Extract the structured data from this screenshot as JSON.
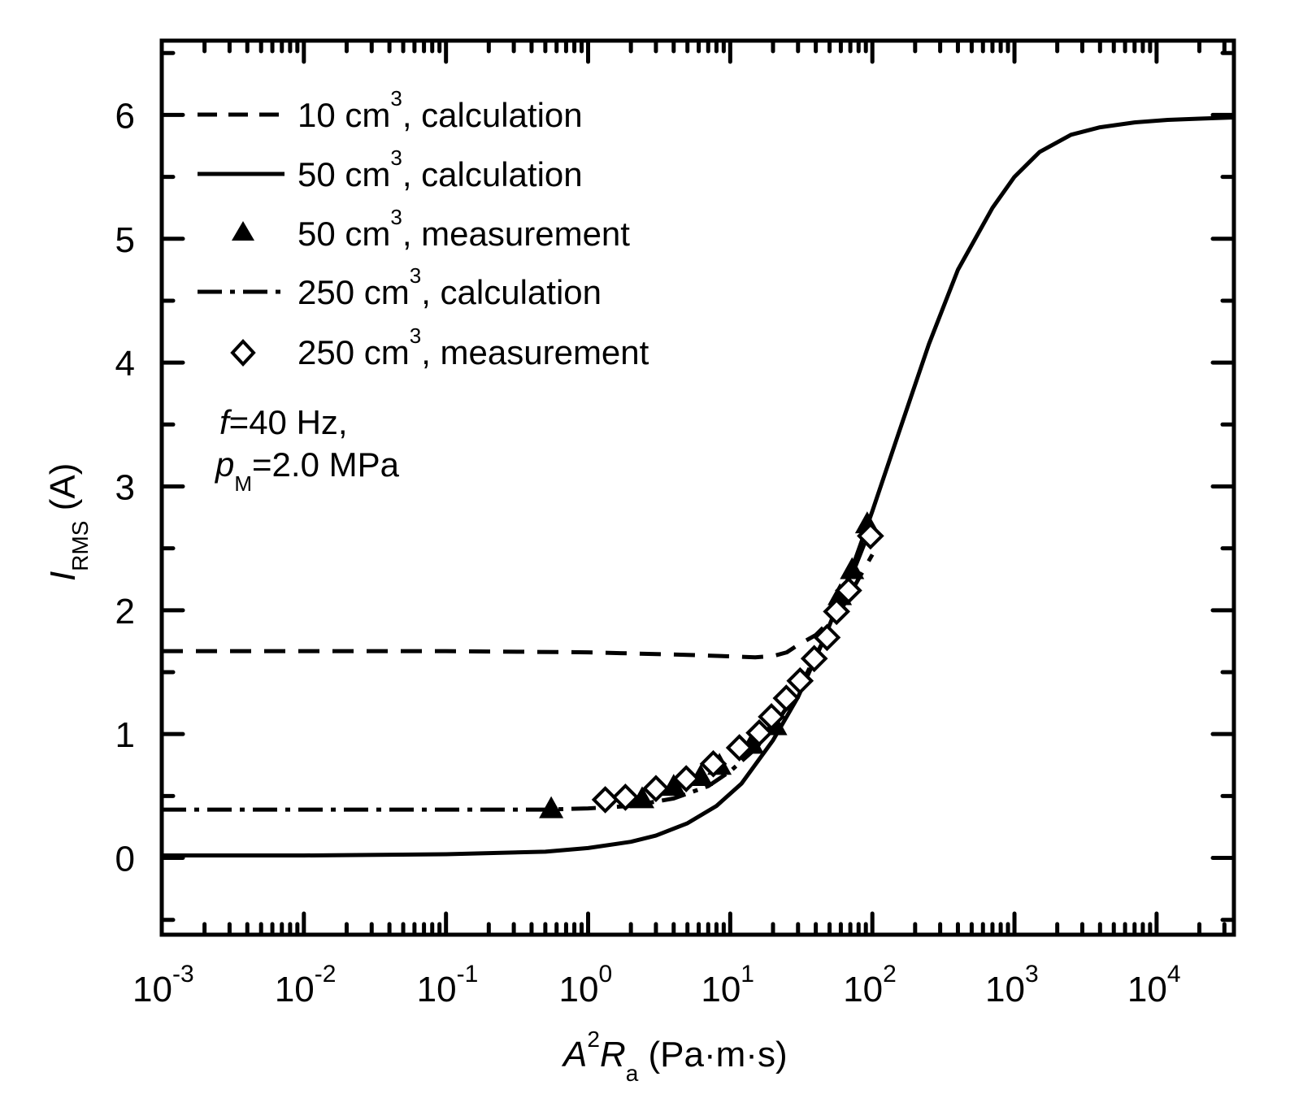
{
  "chart_data": {
    "type": "line",
    "xscale": "log",
    "xlabel": {
      "main": "A",
      "sup": "2",
      "sym": "R",
      "sub": "a",
      "units": " (Pa·m·s)"
    },
    "ylabel": {
      "main": "I",
      "sub": "RMS",
      "units": " (A)"
    },
    "xlim": [
      0.001,
      35000
    ],
    "ylim": [
      -0.62,
      6.6
    ],
    "x_ticks": [
      {
        "base": "10",
        "exp": "-3",
        "value": 0.001
      },
      {
        "base": "10",
        "exp": "-2",
        "value": 0.01
      },
      {
        "base": "10",
        "exp": "-1",
        "value": 0.1
      },
      {
        "base": "10",
        "exp": "0",
        "value": 1
      },
      {
        "base": "10",
        "exp": "1",
        "value": 10
      },
      {
        "base": "10",
        "exp": "2",
        "value": 100
      },
      {
        "base": "10",
        "exp": "3",
        "value": 1000
      },
      {
        "base": "10",
        "exp": "4",
        "value": 10000
      }
    ],
    "y_ticks": [
      "0",
      "1",
      "2",
      "3",
      "4",
      "5",
      "6"
    ],
    "annotation": {
      "f_sym": "f",
      "f_text": "=40 Hz,",
      "p_sym": "p",
      "p_sub": "M",
      "p_text": "=2.0 MPa"
    },
    "legend_position": "top-left",
    "series": [
      {
        "name": "10 cm3, calculation",
        "label_a": "10 cm",
        "label_sup": "3",
        "label_b": ", calculation",
        "style": "dash",
        "x": [
          0.001,
          0.01,
          0.1,
          1,
          5,
          15,
          20,
          25,
          30,
          40,
          60,
          100
        ],
        "y": [
          1.67,
          1.67,
          1.67,
          1.66,
          1.64,
          1.62,
          1.63,
          1.66,
          1.72,
          1.8,
          2.0,
          2.45
        ]
      },
      {
        "name": "50 cm3, calculation",
        "label_a": "50 cm",
        "label_sup": "3",
        "label_b": ", calculation",
        "style": "solid",
        "x": [
          0.001,
          0.01,
          0.1,
          0.5,
          1,
          2,
          3,
          5,
          8,
          12,
          20,
          30,
          45,
          70,
          100,
          150,
          250,
          400,
          700,
          1000,
          1500,
          2500,
          4000,
          7000,
          12000,
          20000,
          35000
        ],
        "y": [
          0.02,
          0.02,
          0.03,
          0.05,
          0.08,
          0.13,
          0.18,
          0.28,
          0.42,
          0.6,
          0.95,
          1.3,
          1.75,
          2.3,
          2.8,
          3.4,
          4.15,
          4.75,
          5.25,
          5.5,
          5.7,
          5.84,
          5.9,
          5.94,
          5.96,
          5.97,
          5.98
        ]
      },
      {
        "name": "50 cm3, measurement",
        "label_a": "50 cm",
        "label_sup": "3",
        "label_b": ", measurement",
        "marker": "triangle",
        "x": [
          0.55,
          2.4,
          4.0,
          6.2,
          8.4,
          14.2,
          20.7,
          59,
          72,
          92
        ],
        "y": [
          0.4,
          0.48,
          0.58,
          0.66,
          0.75,
          0.92,
          1.07,
          2.12,
          2.33,
          2.7
        ]
      },
      {
        "name": "250 cm3, calculation",
        "label_a": "250 cm",
        "label_sup": "3",
        "label_b": ", calculation",
        "style": "dashdot",
        "x": [
          0.001,
          0.01,
          0.1,
          0.5,
          1,
          2,
          4,
          7,
          10,
          15,
          20,
          30,
          45,
          70,
          100
        ],
        "y": [
          0.39,
          0.39,
          0.39,
          0.39,
          0.4,
          0.42,
          0.48,
          0.58,
          0.7,
          0.88,
          1.05,
          1.35,
          1.75,
          2.25,
          2.7
        ]
      },
      {
        "name": "250 cm3, measurement",
        "label_a": "250 cm",
        "label_sup": "3",
        "label_b": ", measurement",
        "marker": "diamond",
        "x": [
          1.32,
          1.83,
          3.0,
          4.9,
          7.6,
          11.6,
          16,
          19.5,
          24.8,
          31,
          39,
          48,
          56,
          68,
          97
        ],
        "y": [
          0.47,
          0.49,
          0.56,
          0.64,
          0.76,
          0.89,
          1.01,
          1.14,
          1.29,
          1.43,
          1.61,
          1.78,
          1.99,
          2.16,
          2.6
        ]
      }
    ]
  }
}
